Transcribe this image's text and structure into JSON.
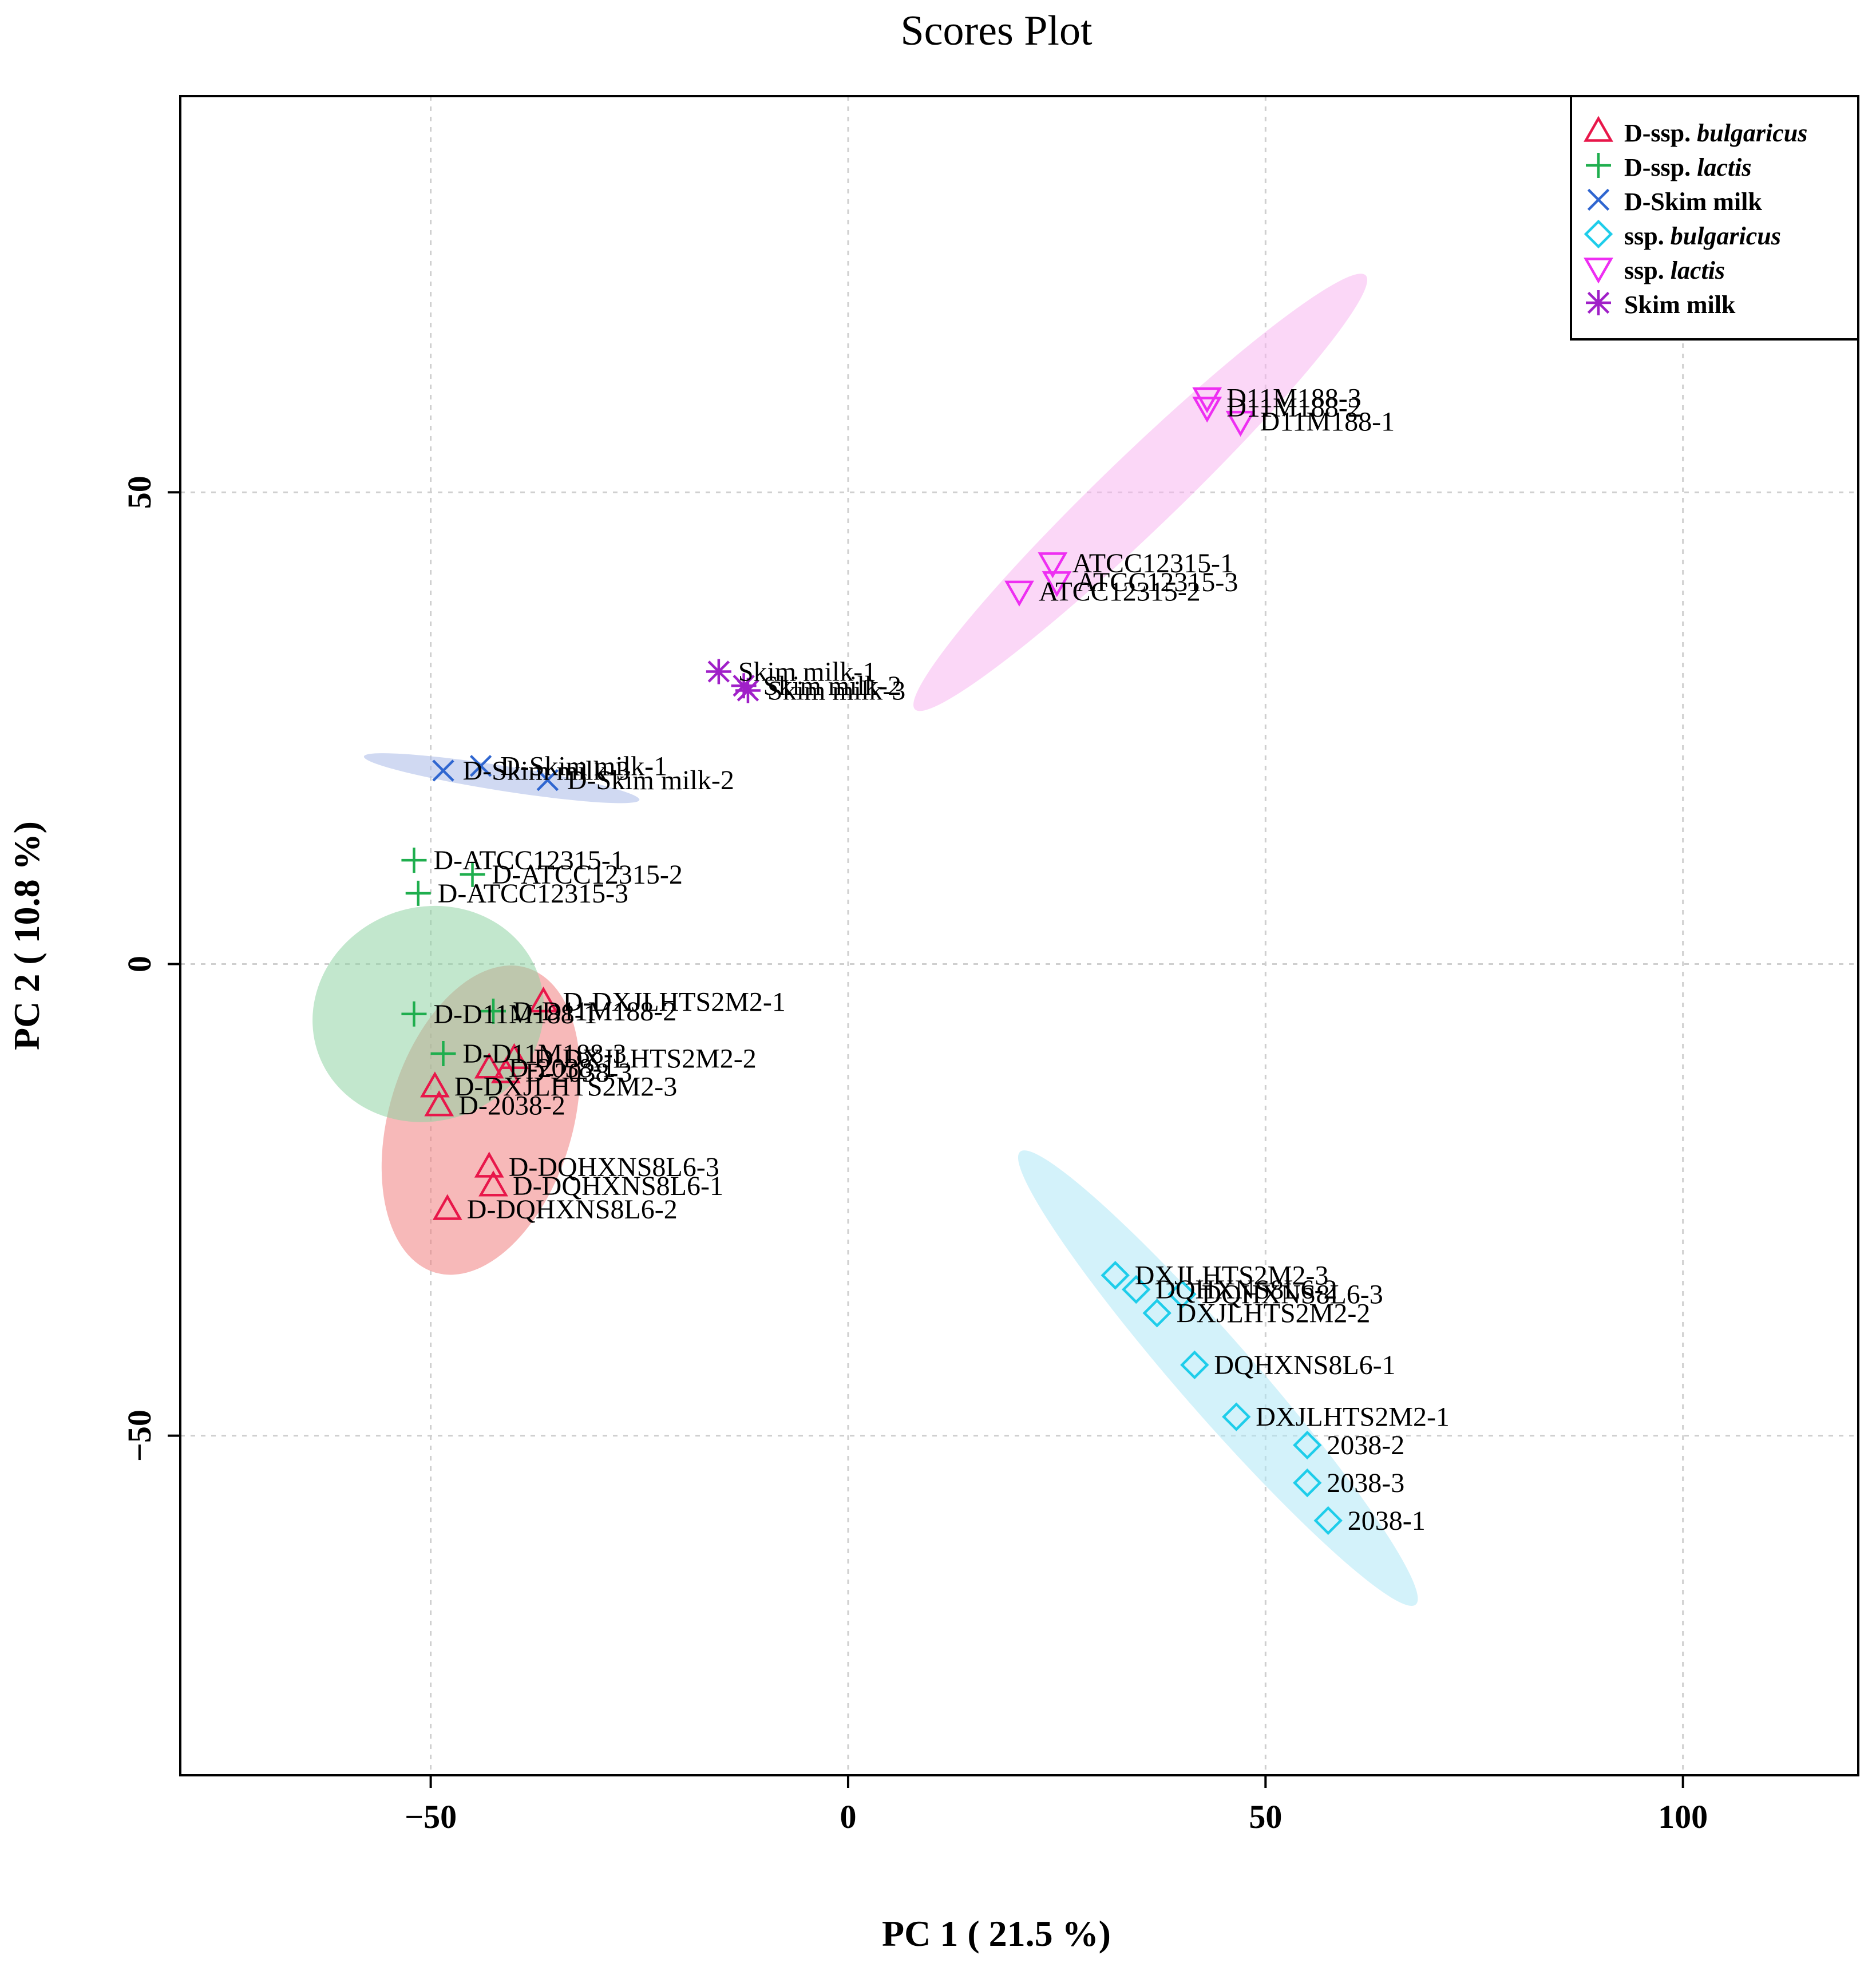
{
  "chart_data": {
    "type": "scatter",
    "title": "Scores Plot",
    "xlabel": "PC 1 ( 21.5 %)",
    "ylabel": "PC 2 ( 10.8 %)",
    "xlim": [
      -80,
      121
    ],
    "ylim": [
      -86,
      92
    ],
    "x_ticks": [
      -50,
      0,
      50,
      100
    ],
    "x_tick_labels": [
      "−50",
      "0",
      "50",
      "100"
    ],
    "y_ticks": [
      -50,
      0,
      50
    ],
    "y_tick_labels": [
      "−50",
      "0",
      "50"
    ],
    "grid": true,
    "legend_position": "top-right",
    "series": [
      {
        "key": "d-bulgaricus",
        "name": "D-ssp. bulgaricus",
        "name_prefix": "D-ssp. ",
        "name_italic": "bulgaricus",
        "color": "#e8174a",
        "marker": "triangle-up",
        "ellipse_fill": "#f08080",
        "ellipse_line": [
          [
            -49.5,
            -32.7
          ],
          [
            -38.5,
            -0.4
          ]
        ],
        "ellipse_width": 11,
        "points": [
          {
            "label": "D-DXJLHTS2M2-1",
            "x": -36.5,
            "y": -4
          },
          {
            "label": "D-DXJLHTS2M2-2",
            "x": -40,
            "y": -10
          },
          {
            "label": "D-2038-1",
            "x": -43,
            "y": -11
          },
          {
            "label": "D-2038-3",
            "x": -41,
            "y": -11.5
          },
          {
            "label": "D-DXJLHTS2M2-3",
            "x": -49.5,
            "y": -13
          },
          {
            "label": "D-2038-2",
            "x": -49,
            "y": -15
          },
          {
            "label": "D-DQHXNS8L6-3",
            "x": -43,
            "y": -21.5
          },
          {
            "label": "D-DQHXNS8L6-1",
            "x": -42.5,
            "y": -23.5
          },
          {
            "label": "D-DQHXNS8L6-2",
            "x": -48,
            "y": -26
          }
        ]
      },
      {
        "key": "d-lactis",
        "name": "D-ssp. lactis",
        "name_prefix": "D-ssp. ",
        "name_italic": "lactis",
        "color": "#1fae4e",
        "marker": "plus",
        "ellipse_fill": "#8fd4a4",
        "ellipse_line": [
          [
            -54.8,
            5.3
          ],
          [
            -45.8,
            -15.9
          ]
        ],
        "ellipse_width": 14,
        "points": [
          {
            "label": "D-ATCC12315-1",
            "x": -52,
            "y": 11
          },
          {
            "label": "D-ATCC12315-2",
            "x": -45,
            "y": 9.5
          },
          {
            "label": "D-ATCC12315-3",
            "x": -51.5,
            "y": 7.5
          },
          {
            "label": "D-D11M188-2",
            "x": -42.5,
            "y": -5
          },
          {
            "label": "D-D11M188-1",
            "x": -52,
            "y": -5.3
          },
          {
            "label": "D-D11M188-3",
            "x": -48.5,
            "y": -9.5
          }
        ]
      },
      {
        "key": "d-skim",
        "name": "D-Skim milk",
        "name_prefix": "D-Skim milk",
        "name_italic": "",
        "color": "#2f66d0",
        "marker": "cross",
        "ellipse_fill": "#a9b9e8",
        "ellipse_line": [
          [
            -58,
            22
          ],
          [
            -25,
            17.4
          ]
        ],
        "ellipse_width": 1.5,
        "points": [
          {
            "label": "D-Skim milk-3",
            "x": -48.5,
            "y": 20.5
          },
          {
            "label": "D-Skim milk-1",
            "x": -44,
            "y": 21
          },
          {
            "label": "D-Skim milk-2",
            "x": -36,
            "y": 19.5
          }
        ]
      },
      {
        "key": "bulgaricus",
        "name": "ssp. bulgaricus",
        "name_prefix": "ssp. ",
        "name_italic": "bulgaricus",
        "color": "#1ecdea",
        "marker": "diamond",
        "ellipse_fill": "#aee8f6",
        "ellipse_line": [
          [
            20.6,
            -19.9
          ],
          [
            68,
            -67.9
          ]
        ],
        "ellipse_width": 4.5,
        "points": [
          {
            "label": "DXJLHTS2M2-3",
            "x": 32,
            "y": -33
          },
          {
            "label": "DQHXNS8L6-2",
            "x": 34.5,
            "y": -34.5
          },
          {
            "label": "DQHXNS8L6-3",
            "x": 40,
            "y": -35
          },
          {
            "label": "DXJLHTS2M2-2",
            "x": 37,
            "y": -37
          },
          {
            "label": "DQHXNS8L6-1",
            "x": 41.5,
            "y": -42.5
          },
          {
            "label": "DXJLHTS2M2-1",
            "x": 46.5,
            "y": -48
          },
          {
            "label": "2038-2",
            "x": 55,
            "y": -51
          },
          {
            "label": "2038-3",
            "x": 55,
            "y": -55
          },
          {
            "label": "2038-1",
            "x": 57.5,
            "y": -59
          }
        ]
      },
      {
        "key": "lactis",
        "name": "ssp. lactis",
        "name_prefix": "ssp. ",
        "name_italic": "lactis",
        "color": "#ee2ef2",
        "marker": "triangle-down",
        "ellipse_fill": "#f8b6f0",
        "ellipse_line": [
          [
            8,
            27
          ],
          [
            62,
            73
          ]
        ],
        "ellipse_width": 4.5,
        "points": [
          {
            "label": "D11M188-3",
            "x": 43,
            "y": 60
          },
          {
            "label": "D11M188-2",
            "x": 43,
            "y": 59
          },
          {
            "label": "D11M188-1",
            "x": 47,
            "y": 57.5
          },
          {
            "label": "ATCC12315-1",
            "x": 24.5,
            "y": 42.5
          },
          {
            "label": "ATCC12315-3",
            "x": 25,
            "y": 40.5
          },
          {
            "label": "ATCC12315-2",
            "x": 20.5,
            "y": 39.5
          }
        ]
      },
      {
        "key": "skim",
        "name": "Skim milk",
        "name_prefix": "Skim milk",
        "name_italic": "",
        "color": "#a020c8",
        "marker": "asterisk",
        "points": [
          {
            "label": "Skim milk-1",
            "x": -15.5,
            "y": 31
          },
          {
            "label": "Skim milk-2",
            "x": -12.5,
            "y": 29.5
          },
          {
            "label": "Skim milk-3",
            "x": -12,
            "y": 29
          }
        ]
      }
    ]
  }
}
